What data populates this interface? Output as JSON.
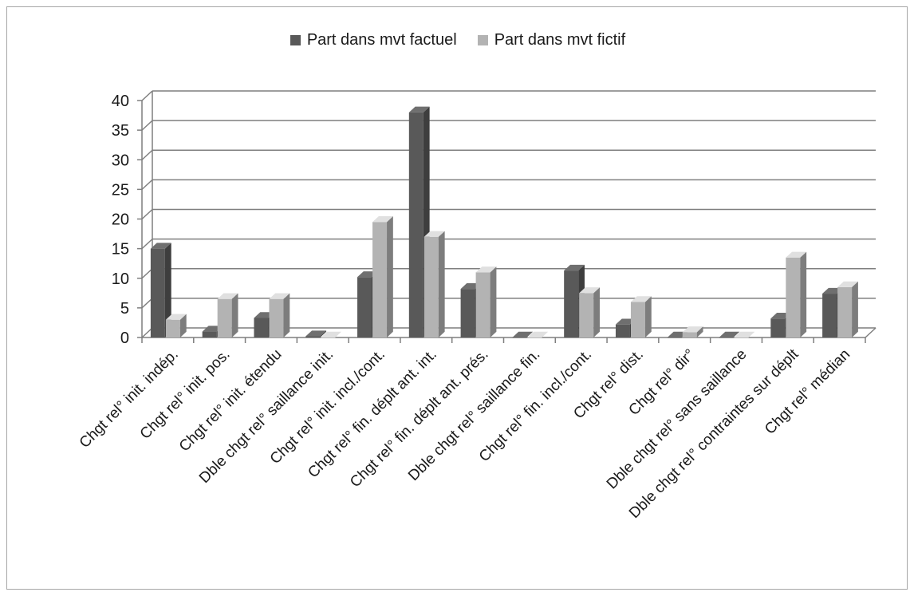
{
  "chart_data": {
    "type": "bar",
    "style": "3d-clustered",
    "title": "",
    "xlabel": "",
    "ylabel": "",
    "ylim": [
      0,
      40
    ],
    "yticks": [
      0,
      5,
      10,
      15,
      20,
      25,
      30,
      35,
      40
    ],
    "grid": true,
    "legend_position": "top",
    "categories": [
      "Chgt rel° init. indép.",
      "Chgt rel° init. pos.",
      "Chgt rel° init. étendu",
      "Dble chgt rel° saillance init.",
      "Chgt rel° init. incl./cont.",
      "Chgt rel° fin. déplt ant. int.",
      "Chgt rel° fin. déplt ant. prés.",
      "Dble chgt rel° saillance fin.",
      "Chgt rel° fin. incl./cont.",
      "Chgt rel° dist.",
      "Chgt rel° dir°",
      "Dble chgt rel° sans saillance",
      "Dble chgt rel° contraintes sur déplt",
      "Chgt rel° médian"
    ],
    "series": [
      {
        "name": "Part dans mvt factuel",
        "color": "#595959",
        "values": [
          15,
          1,
          3.3,
          0.2,
          10.2,
          38,
          8.2,
          0,
          11.3,
          2.2,
          0,
          0,
          3.2,
          7.4
        ]
      },
      {
        "name": "Part dans mvt fictif",
        "color": "#b3b3b3",
        "values": [
          3,
          6.5,
          6.5,
          0,
          19.5,
          17,
          11,
          0,
          7.5,
          6,
          0.9,
          0,
          13.5,
          8.5
        ]
      }
    ]
  }
}
